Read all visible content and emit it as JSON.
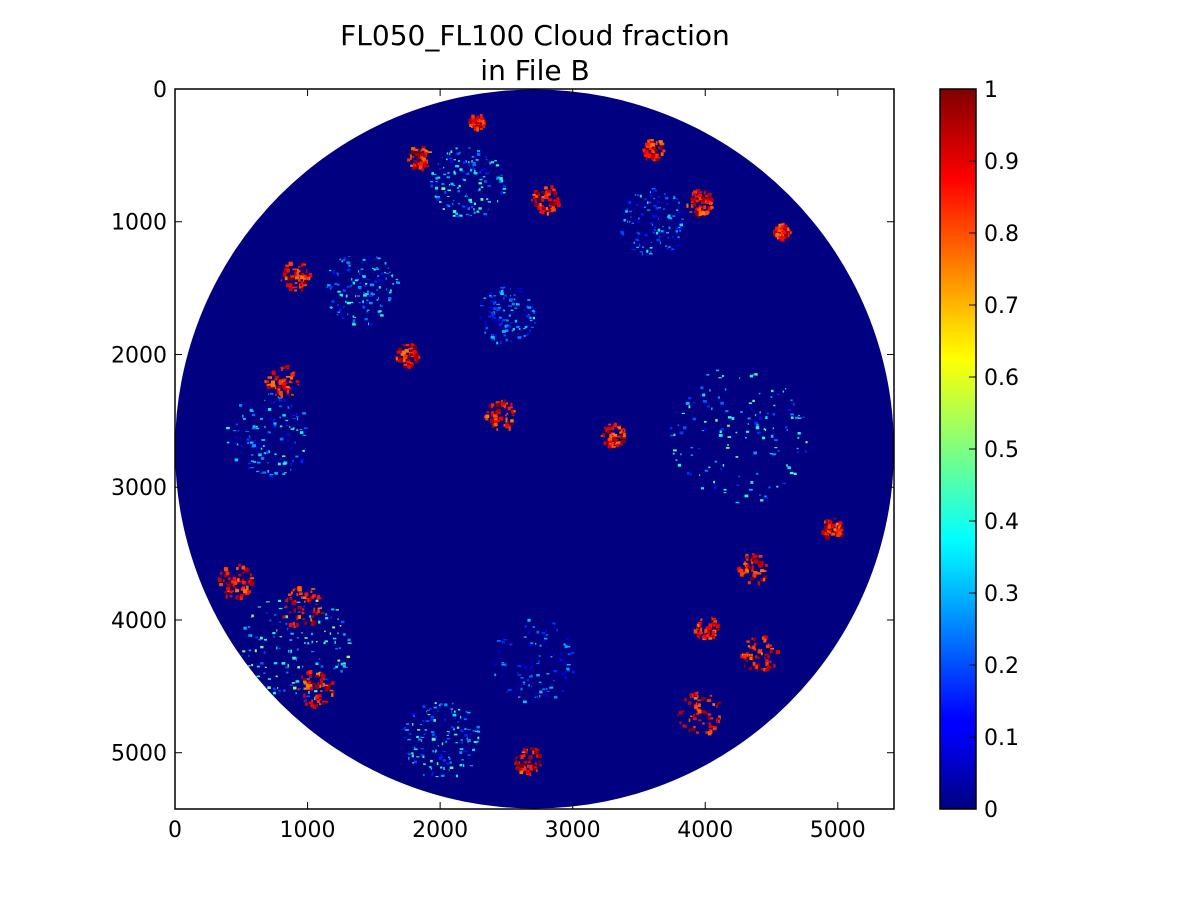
{
  "chart_data": {
    "type": "heatmap",
    "title": [
      "FL050_FL100 Cloud fraction",
      "in File B"
    ],
    "xlabel": "",
    "ylabel": "",
    "xlim": [
      0,
      5424
    ],
    "ylim": [
      5424,
      0
    ],
    "x_ticks": [
      0,
      1000,
      2000,
      3000,
      4000,
      5000
    ],
    "x_tick_labels": [
      "0",
      "1000",
      "2000",
      "3000",
      "4000",
      "5000"
    ],
    "y_ticks": [
      0,
      1000,
      2000,
      3000,
      4000,
      5000
    ],
    "y_tick_labels": [
      "0",
      "1000",
      "2000",
      "3000",
      "4000",
      "5000"
    ],
    "colormap": "jet",
    "value_range": [
      0,
      1
    ],
    "background_value": 0,
    "colorbar_ticks": [
      0,
      0.1,
      0.2,
      0.3,
      0.4,
      0.5,
      0.6,
      0.7,
      0.8,
      0.9,
      1
    ],
    "colorbar_tick_labels": [
      "0",
      "0.1",
      "0.2",
      "0.3",
      "0.4",
      "0.5",
      "0.6",
      "0.7",
      "0.8",
      "0.9",
      "1"
    ],
    "disk": {
      "center": [
        2712,
        2712
      ],
      "radius": 2712
    },
    "high_fraction_regions": [
      {
        "center": [
          2270,
          240
        ],
        "radius": 60,
        "value": 1
      },
      {
        "center": [
          1830,
          510
        ],
        "radius": 90,
        "value": 1
      },
      {
        "center": [
          2780,
          820
        ],
        "radius": 110,
        "value": 1
      },
      {
        "center": [
          3600,
          450
        ],
        "radius": 80,
        "value": 1
      },
      {
        "center": [
          3950,
          850
        ],
        "radius": 100,
        "value": 1
      },
      {
        "center": [
          4570,
          1060
        ],
        "radius": 60,
        "value": 1
      },
      {
        "center": [
          900,
          1400
        ],
        "radius": 110,
        "value": 1
      },
      {
        "center": [
          800,
          2200
        ],
        "radius": 130,
        "value": 1
      },
      {
        "center": [
          1750,
          2000
        ],
        "radius": 90,
        "value": 1
      },
      {
        "center": [
          2450,
          2450
        ],
        "radius": 120,
        "value": 1
      },
      {
        "center": [
          3300,
          2600
        ],
        "radius": 90,
        "value": 1
      },
      {
        "center": [
          4350,
          3600
        ],
        "radius": 120,
        "value": 1
      },
      {
        "center": [
          4950,
          3300
        ],
        "radius": 80,
        "value": 1
      },
      {
        "center": [
          450,
          3700
        ],
        "radius": 130,
        "value": 1
      },
      {
        "center": [
          950,
          3900
        ],
        "radius": 160,
        "value": 1
      },
      {
        "center": [
          1050,
          4500
        ],
        "radius": 140,
        "value": 1
      },
      {
        "center": [
          2650,
          5050
        ],
        "radius": 110,
        "value": 1
      },
      {
        "center": [
          3950,
          4700
        ],
        "radius": 170,
        "value": 1
      },
      {
        "center": [
          4400,
          4250
        ],
        "radius": 140,
        "value": 1
      },
      {
        "center": [
          4000,
          4050
        ],
        "radius": 90,
        "value": 1
      }
    ],
    "medium_fraction_regions": [
      {
        "center": [
          2200,
          700
        ],
        "radius": 280,
        "value": 0.3
      },
      {
        "center": [
          1400,
          1500
        ],
        "radius": 280,
        "value": 0.25
      },
      {
        "center": [
          2500,
          1700
        ],
        "radius": 220,
        "value": 0.2
      },
      {
        "center": [
          4250,
          2600
        ],
        "radius": 520,
        "value": 0.3
      },
      {
        "center": [
          700,
          2600
        ],
        "radius": 320,
        "value": 0.25
      },
      {
        "center": [
          900,
          4200
        ],
        "radius": 420,
        "value": 0.35
      },
      {
        "center": [
          2000,
          4900
        ],
        "radius": 300,
        "value": 0.3
      },
      {
        "center": [
          3600,
          1000
        ],
        "radius": 260,
        "value": 0.2
      },
      {
        "center": [
          2700,
          4300
        ],
        "radius": 320,
        "value": 0.15
      }
    ]
  }
}
